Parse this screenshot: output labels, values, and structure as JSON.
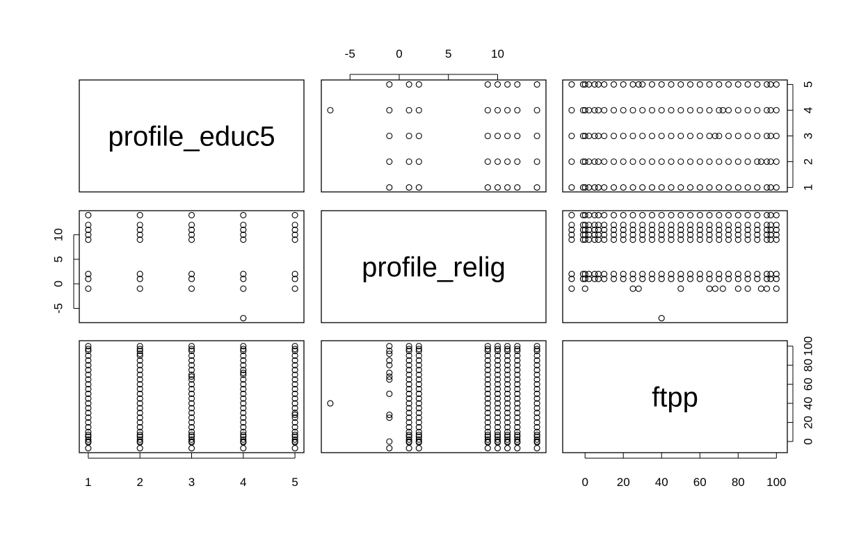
{
  "chart_data": {
    "type": "scatter",
    "layout": "scatterplot-matrix",
    "variables": [
      {
        "name": "profile_educ5",
        "range": [
          1,
          5
        ],
        "ticks": [
          1,
          2,
          3,
          4,
          5
        ]
      },
      {
        "name": "profile_relig",
        "range": [
          -7,
          14
        ],
        "ticks": [
          -5,
          0,
          5,
          10
        ]
      },
      {
        "name": "ftpp",
        "range": [
          -7,
          101
        ],
        "ticks": [
          0,
          20,
          40,
          60,
          80,
          100
        ]
      }
    ],
    "axis_placement": {
      "top": [
        1
      ],
      "bottom": [
        0,
        2
      ],
      "left": [
        1
      ],
      "right": [
        0,
        2
      ]
    },
    "distinct_values": {
      "profile_educ5": [
        1,
        2,
        3,
        4,
        5
      ],
      "profile_relig": [
        -7,
        -1,
        1,
        2,
        9,
        10,
        11,
        12,
        14
      ]
    },
    "ftpp_values": [
      -7,
      -1,
      0,
      2,
      5,
      7,
      10,
      15,
      20,
      25,
      30,
      35,
      40,
      45,
      50,
      55,
      60,
      65,
      70,
      75,
      80,
      85,
      90,
      95,
      97,
      100
    ],
    "educ_relig_pairs": [
      [
        1,
        -1
      ],
      [
        1,
        1
      ],
      [
        1,
        2
      ],
      [
        1,
        9
      ],
      [
        1,
        10
      ],
      [
        1,
        11
      ],
      [
        1,
        12
      ],
      [
        1,
        14
      ],
      [
        2,
        -1
      ],
      [
        2,
        1
      ],
      [
        2,
        2
      ],
      [
        2,
        9
      ],
      [
        2,
        10
      ],
      [
        2,
        11
      ],
      [
        2,
        12
      ],
      [
        2,
        14
      ],
      [
        3,
        -1
      ],
      [
        3,
        1
      ],
      [
        3,
        2
      ],
      [
        3,
        9
      ],
      [
        3,
        10
      ],
      [
        3,
        11
      ],
      [
        3,
        12
      ],
      [
        3,
        14
      ],
      [
        4,
        -7
      ],
      [
        4,
        -1
      ],
      [
        4,
        1
      ],
      [
        4,
        2
      ],
      [
        4,
        9
      ],
      [
        4,
        10
      ],
      [
        4,
        11
      ],
      [
        4,
        12
      ],
      [
        4,
        14
      ],
      [
        5,
        -1
      ],
      [
        5,
        1
      ],
      [
        5,
        2
      ],
      [
        5,
        9
      ],
      [
        5,
        10
      ],
      [
        5,
        11
      ],
      [
        5,
        12
      ],
      [
        5,
        14
      ]
    ],
    "sparse_relig_ftpp": [
      [
        -7,
        40
      ],
      [
        -1,
        -7
      ],
      [
        -1,
        0
      ],
      [
        -1,
        25
      ],
      [
        -1,
        28
      ],
      [
        -1,
        50
      ],
      [
        -1,
        65
      ],
      [
        -1,
        68
      ],
      [
        -1,
        72
      ],
      [
        -1,
        80
      ],
      [
        -1,
        85
      ],
      [
        -1,
        92
      ],
      [
        -1,
        95
      ],
      [
        -1,
        100
      ]
    ]
  }
}
